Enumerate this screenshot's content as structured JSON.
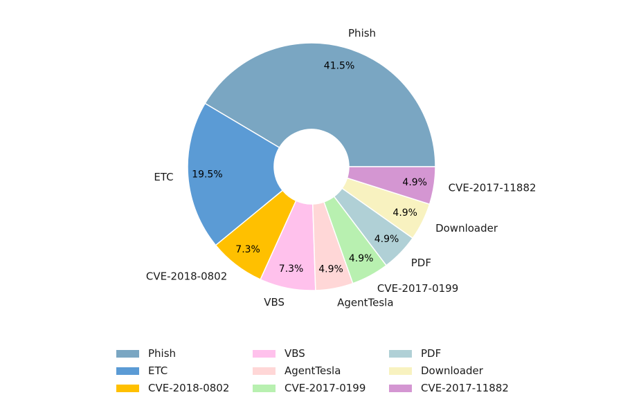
{
  "chart_data": {
    "type": "pie",
    "donut": true,
    "categories": [
      "Phish",
      "ETC",
      "CVE-2018-0802",
      "VBS",
      "AgentTesla",
      "CVE-2017-0199",
      "PDF",
      "Downloader",
      "CVE-2017-11882"
    ],
    "values": [
      41.5,
      19.5,
      7.3,
      7.3,
      4.9,
      4.9,
      4.9,
      4.9,
      4.9
    ],
    "value_labels": [
      "41.5%",
      "19.5%",
      "7.3%",
      "7.3%",
      "4.9%",
      "4.9%",
      "4.9%",
      "4.9%",
      "4.9%"
    ],
    "colors": [
      "#7aa6c2",
      "#5b9bd5",
      "#ffc000",
      "#ffc1ec",
      "#ffd7d7",
      "#b8f0b0",
      "#b0d0d6",
      "#f8f2c0",
      "#d496d2"
    ],
    "start_angle_deg": 0,
    "direction": "counterclockwise",
    "legend": {
      "placement": "bottom",
      "columns": 3,
      "entries": [
        "Phish",
        "ETC",
        "CVE-2018-0802",
        "VBS",
        "AgentTesla",
        "CVE-2017-0199",
        "PDF",
        "Downloader",
        "CVE-2017-11882"
      ]
    },
    "title": "",
    "xlabel": "",
    "ylabel": ""
  }
}
